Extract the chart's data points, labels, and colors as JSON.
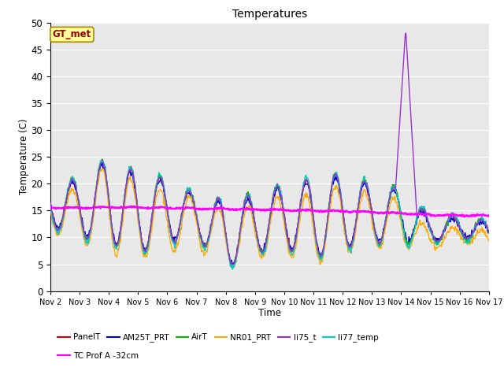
{
  "title": "Temperatures",
  "xlabel": "Time",
  "ylabel": "Temperature (C)",
  "xlim": [
    0,
    15
  ],
  "ylim": [
    0,
    50
  ],
  "yticks": [
    0,
    5,
    10,
    15,
    20,
    25,
    30,
    35,
    40,
    45,
    50
  ],
  "xtick_labels": [
    "Nov 2",
    "Nov 3",
    "Nov 4",
    "Nov 5",
    "Nov 6",
    "Nov 7",
    "Nov 8",
    "Nov 9",
    "Nov 10",
    "Nov 11",
    "Nov 12",
    "Nov 13",
    "Nov 14",
    "Nov 15",
    "Nov 16",
    "Nov 17"
  ],
  "xtick_positions": [
    0,
    1,
    2,
    3,
    4,
    5,
    6,
    7,
    8,
    9,
    10,
    11,
    12,
    13,
    14,
    15
  ],
  "series": {
    "PanelT": {
      "color": "#dd0000",
      "lw": 1.0
    },
    "AM25T_PRT": {
      "color": "#0000dd",
      "lw": 1.0
    },
    "AirT": {
      "color": "#00bb00",
      "lw": 1.0
    },
    "NR01_PRT": {
      "color": "#ffaa00",
      "lw": 1.0
    },
    "li75_t": {
      "color": "#9933cc",
      "lw": 1.0
    },
    "li77_temp": {
      "color": "#00cccc",
      "lw": 1.0
    },
    "TC Prof A -32cm": {
      "color": "#ff00ff",
      "lw": 1.8
    }
  },
  "annotation_text": "GT_met",
  "bg_color": "#e8e8e8",
  "grid_color": "#ffffff",
  "legend_row1": [
    "PanelT",
    "AM25T_PRT",
    "AirT",
    "NR01_PRT",
    "li75_t",
    "li77_temp"
  ],
  "legend_row2": [
    "TC Prof A -32cm"
  ]
}
